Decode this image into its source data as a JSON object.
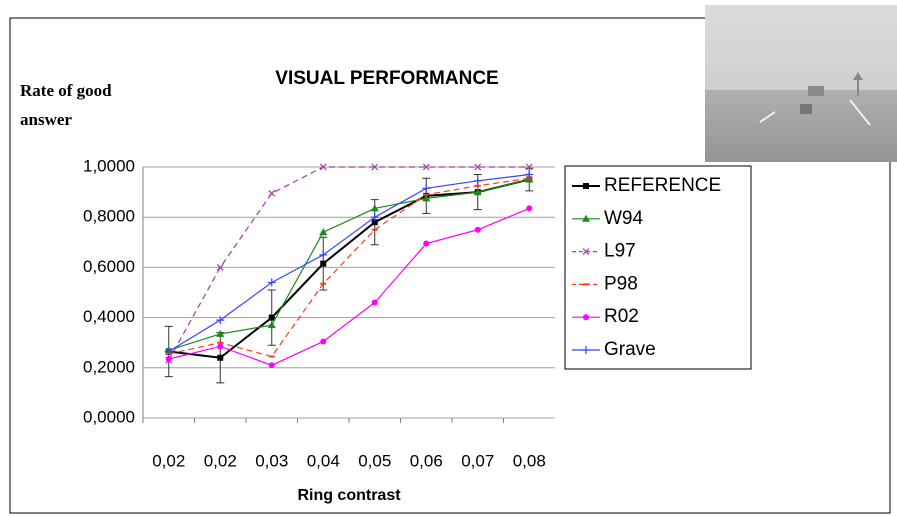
{
  "chart_data": {
    "type": "line",
    "title": "VISUAL PERFORMANCE",
    "y_label": [
      "Rate of good",
      "answer"
    ],
    "x_label": "Ring contrast",
    "categories": [
      "0,02",
      "0,02",
      "0,03",
      "0,04",
      "0,05",
      "0,06",
      "0,07",
      "0,08"
    ],
    "ylim": [
      0,
      1
    ],
    "yticks": [
      {
        "value": 0,
        "label": "0,0000"
      },
      {
        "value": 0.2,
        "label": "0,2000"
      },
      {
        "value": 0.4,
        "label": "0,4000"
      },
      {
        "value": 0.6,
        "label": "0,6000"
      },
      {
        "value": 0.8,
        "label": "0,8000"
      },
      {
        "value": 1,
        "label": "1,0000"
      }
    ],
    "grid": true,
    "legend": "right",
    "series": [
      {
        "name": "REFERENCE",
        "color": "#000000",
        "marker": "square",
        "dashed": false,
        "values": [
          0.265,
          0.24,
          0.4,
          0.615,
          0.78,
          0.885,
          0.9,
          0.95
        ],
        "errors": [
          0.1,
          0.1,
          0.11,
          0.105,
          0.09,
          0.07,
          0.07,
          0.045
        ]
      },
      {
        "name": "W94",
        "color": "#1a8a1a",
        "marker": "triangle",
        "dashed": false,
        "values": [
          0.27,
          0.335,
          0.37,
          0.74,
          0.835,
          0.875,
          0.9,
          0.95
        ]
      },
      {
        "name": "L97",
        "color": "#a040a0",
        "marker": "x",
        "dashed": true,
        "values": [
          0.23,
          0.6,
          0.895,
          1.0,
          1.0,
          1.0,
          1.0,
          1.0
        ]
      },
      {
        "name": "P98",
        "color": "#ff3b1a",
        "marker": "dash",
        "dashed": true,
        "values": [
          0.255,
          0.3,
          0.245,
          0.535,
          0.75,
          0.89,
          0.925,
          0.955
        ]
      },
      {
        "name": "R02",
        "color": "#ff00ff",
        "marker": "circle",
        "dashed": false,
        "values": [
          0.235,
          0.285,
          0.21,
          0.305,
          0.46,
          0.695,
          0.75,
          0.835
        ]
      },
      {
        "name": "Grave",
        "color": "#3344ff",
        "marker": "plus",
        "dashed": false,
        "values": [
          0.265,
          0.39,
          0.54,
          0.65,
          0.8,
          0.915,
          0.945,
          0.97
        ]
      }
    ]
  }
}
